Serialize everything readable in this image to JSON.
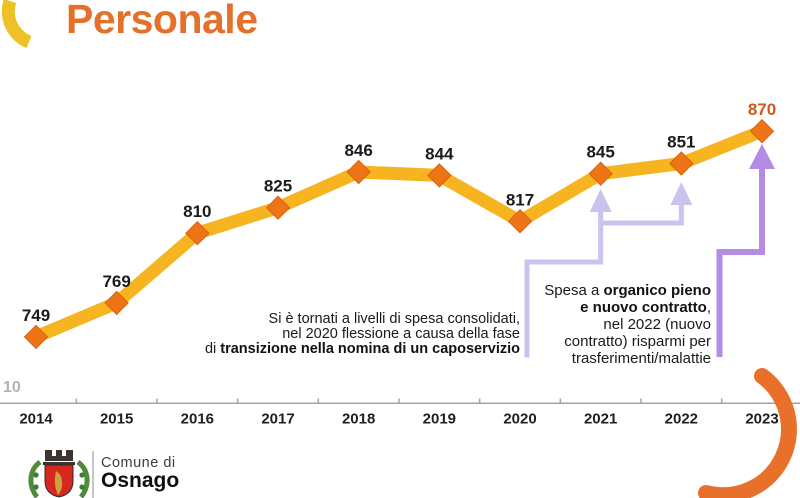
{
  "page": {
    "title": "Personale"
  },
  "chart_data": {
    "type": "line",
    "title": "Personale",
    "categories": [
      "2014",
      "2015",
      "2016",
      "2017",
      "2018",
      "2019",
      "2020",
      "2021",
      "2022",
      "2023"
    ],
    "values": [
      749,
      769,
      810,
      825,
      846,
      844,
      817,
      845,
      851,
      870
    ],
    "xlabel": "",
    "ylabel": "",
    "ylim": [
      710,
      880
    ],
    "grid": false,
    "legend": false,
    "y_axis_cut_label": "10",
    "highlight_last_index": 9,
    "colors": {
      "line": "#f6b420",
      "marker": "#ee7418",
      "marker_stroke": "#d9610e",
      "label": "#1b1b1b",
      "label_highlight": "#d0581c",
      "axis": "#a3a3a3",
      "tick_label": "#1f1f1f",
      "partial_label": "#b3b3b3",
      "connector_light": "#c9c4ef",
      "connector_dark": "#b58ce4"
    }
  },
  "annotations": {
    "left_note": {
      "lines": [
        [
          {
            "t": "Si è tornati a livelli di spesa consolidati,"
          }
        ],
        [
          {
            "t": "nel 2020 flessione a causa della fase"
          }
        ],
        [
          {
            "t": "di "
          },
          {
            "t": "transizione nella nomina di un caposervizio",
            "b": true
          }
        ]
      ]
    },
    "right_note": {
      "lines": [
        [
          {
            "t": "Spesa a "
          },
          {
            "t": "organico pieno",
            "b": true
          }
        ],
        [
          {
            "t": "e nuovo contratto",
            "b": true
          },
          {
            "t": ","
          }
        ],
        [
          {
            "t": "nel 2022 (nuovo"
          }
        ],
        [
          {
            "t": "contratto) risparmi per"
          }
        ],
        [
          {
            "t": "trasferimenti/malattie"
          }
        ]
      ]
    }
  },
  "footer": {
    "org_prefix": "Comune di",
    "org_name": "Osnago"
  },
  "decor": {
    "title_color": "#e4702a",
    "arc_yellow": "#eec127",
    "arc_orange": "#e8702b",
    "shield_red": "#d7281f",
    "leaf_green": "#4f8a3d",
    "crown_dark": "#3a3433",
    "gold": "#c8a23c"
  }
}
